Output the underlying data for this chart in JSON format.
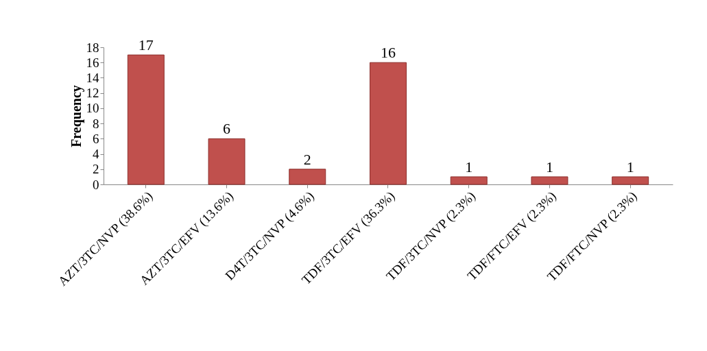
{
  "chart_data": {
    "type": "bar",
    "ylabel": "Frequency",
    "categories": [
      "AZT/3TC/NVP (38.6%)",
      "AZT/3TC/EFV (13.6%)",
      "D4T/3TC/NVP (4.6%)",
      "TDF/3TC/EFV (36.3%)",
      "TDF/3TC/NVP (2.3%)",
      "TDF/FTC/EFV (2.3%)",
      "TDF/FTC/NVP (2.3%)"
    ],
    "values": [
      17,
      6,
      2,
      16,
      1,
      1,
      1
    ],
    "color": "#c0504d",
    "ylim": [
      0,
      18
    ],
    "yticks": [
      0,
      2,
      4,
      6,
      8,
      10,
      12,
      14,
      16,
      18
    ],
    "data_labels": true
  }
}
